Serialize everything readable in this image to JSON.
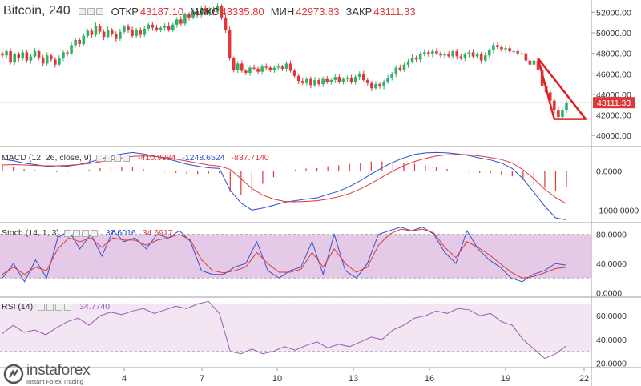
{
  "header": {
    "symbol": "Bitcoin, 240",
    "open_label": "ОТКР",
    "open": "43187.10",
    "high_label": "МАКС",
    "high": "43335.80",
    "low_label": "МИН",
    "low": "42973.83",
    "close_label": "ЗАКР",
    "close": "43111.33"
  },
  "price_badge": "43111.33",
  "indicators": {
    "macd": {
      "name": "MACD (12, 26, close, 9)",
      "v1": "-410.9384",
      "v2": "-1248.6524",
      "v3": "-837.7140"
    },
    "stoch": {
      "name": "Stoch (14, 1, 3)",
      "v1": "37.6016",
      "v2": "34.6917"
    },
    "rsi": {
      "name": "RSI (14)",
      "v1": "34.7740"
    }
  },
  "logo": {
    "brand": "instaforex",
    "tagline": "Instant Forex Trading"
  },
  "colors": {
    "up": "#2eb36b",
    "down": "#e0373a",
    "macd_line": "#2c4fd0",
    "signal_line": "#e0373a",
    "stoch_k": "#3a4fd0",
    "stoch_d": "#e0373a",
    "rsi": "#9b59b6",
    "band": "#dbb8de",
    "triangle": "#e0201f"
  },
  "chart_data": [
    {
      "type": "candlestick",
      "panel": "price",
      "x_ticks": [
        "4",
        "7",
        "10",
        "13",
        "16",
        "19",
        "22"
      ],
      "y_ticks": [
        "40000.00",
        "42000.00",
        "44000.00",
        "46000.00",
        "48000.00",
        "50000.00",
        "52000.00"
      ],
      "ylim": [
        39000,
        53200
      ],
      "close_series": [
        47800,
        48200,
        47100,
        47900,
        47500,
        48100,
        47300,
        47700,
        48200,
        47600,
        47000,
        47800,
        47400,
        46900,
        47500,
        48100,
        48000,
        48800,
        49300,
        48900,
        49700,
        50200,
        49800,
        50700,
        50100,
        49600,
        50300,
        49900,
        49400,
        50100,
        50600,
        50300,
        49700,
        50300,
        49800,
        50400,
        50800,
        50500,
        50300,
        50500,
        50700,
        50300,
        50800,
        51300,
        50900,
        51800,
        51500,
        52100,
        51700,
        52400,
        51900,
        52300,
        52000,
        52600,
        51500,
        50300,
        47500,
        46400,
        47000,
        46300,
        46100,
        46600,
        46500,
        46200,
        46700,
        46600,
        46400,
        46600,
        46700,
        46500,
        47000,
        46300,
        45800,
        45300,
        45100,
        45500,
        44900,
        45400,
        45000,
        45500,
        45200,
        45400,
        45700,
        45200,
        45500,
        45600,
        45200,
        45700,
        46000,
        45400,
        45100,
        44600,
        45000,
        44800,
        45200,
        45600,
        46000,
        46600,
        46400,
        46900,
        47200,
        47600,
        47400,
        47900,
        48100,
        47900,
        48200,
        48000,
        47800,
        47900,
        47700,
        48200,
        47700,
        47500,
        47900,
        48100,
        47700,
        47900,
        47300,
        47800,
        48300,
        48800,
        48600,
        48400,
        48500,
        48200,
        48200,
        48000,
        48000,
        47300,
        46900,
        47300,
        46400,
        44800,
        44200,
        43400,
        42500,
        41800,
        42500,
        43200
      ],
      "annotation": "down-trend triangle drawn from about 47500 down to 41600"
    },
    {
      "type": "line",
      "panel": "macd",
      "ylim": [
        -1300,
        600
      ],
      "y_ticks": [
        "0.0000",
        "-1000.0000"
      ],
      "series": [
        {
          "values": [
            300,
            260,
            200,
            160,
            120,
            100,
            120,
            160,
            220,
            300,
            380,
            430,
            470,
            430,
            380,
            320,
            250,
            170,
            120,
            80,
            60,
            -500,
            -820,
            -1000,
            -950,
            -880,
            -800,
            -760,
            -720,
            -690,
            -600,
            -520,
            -400,
            -250,
            -80,
            80,
            220,
            330,
            420,
            460,
            470,
            460,
            430,
            390,
            330,
            280,
            200,
            60,
            -200,
            -550,
            -900,
            -1200,
            -1248
          ]
        },
        {
          "values": [
            150,
            160,
            150,
            140,
            130,
            130,
            140,
            160,
            190,
            230,
            280,
            330,
            370,
            380,
            370,
            340,
            300,
            250,
            200,
            150,
            120,
            40,
            -200,
            -450,
            -620,
            -720,
            -780,
            -790,
            -780,
            -760,
            -720,
            -660,
            -580,
            -460,
            -320,
            -160,
            0,
            130,
            240,
            320,
            380,
            410,
            420,
            410,
            380,
            340,
            290,
            200,
            30,
            -200,
            -470,
            -680,
            -838
          ]
        }
      ]
    },
    {
      "type": "line",
      "panel": "stoch",
      "ylim": [
        -5,
        95
      ],
      "y_ticks": [
        "80.0000",
        "40.0000",
        "0.0000"
      ],
      "band": [
        20,
        80
      ],
      "series": [
        {
          "values": [
            20,
            40,
            15,
            45,
            20,
            75,
            85,
            60,
            80,
            50,
            85,
            70,
            75,
            60,
            80,
            75,
            85,
            70,
            30,
            25,
            25,
            35,
            40,
            70,
            30,
            20,
            30,
            35,
            70,
            25,
            80,
            30,
            20,
            40,
            80,
            85,
            90,
            85,
            90,
            80,
            55,
            40,
            85,
            60,
            45,
            35,
            20,
            15,
            25,
            30,
            40,
            37.6
          ]
        },
        {
          "values": [
            25,
            35,
            25,
            35,
            30,
            60,
            75,
            70,
            75,
            62,
            75,
            72,
            72,
            65,
            72,
            75,
            80,
            72,
            45,
            30,
            27,
            30,
            35,
            55,
            40,
            28,
            28,
            32,
            55,
            35,
            60,
            40,
            28,
            35,
            65,
            80,
            87,
            85,
            87,
            82,
            62,
            48,
            70,
            62,
            52,
            40,
            28,
            20,
            22,
            27,
            33,
            34.7
          ]
        }
      ]
    },
    {
      "type": "line",
      "panel": "rsi",
      "ylim": [
        17,
        75
      ],
      "y_ticks": [
        "60.0000",
        "40.0000",
        "20.0000"
      ],
      "band": [
        30,
        70
      ],
      "series": [
        {
          "values": [
            45,
            52,
            46,
            48,
            44,
            50,
            55,
            58,
            52,
            60,
            63,
            61,
            64,
            66,
            62,
            65,
            68,
            66,
            70,
            72,
            62,
            30,
            28,
            32,
            28,
            30,
            34,
            31,
            35,
            38,
            33,
            36,
            34,
            38,
            42,
            40,
            48,
            52,
            58,
            60,
            64,
            62,
            66,
            65,
            60,
            62,
            55,
            52,
            40,
            32,
            24,
            28,
            34.8
          ]
        }
      ]
    }
  ]
}
